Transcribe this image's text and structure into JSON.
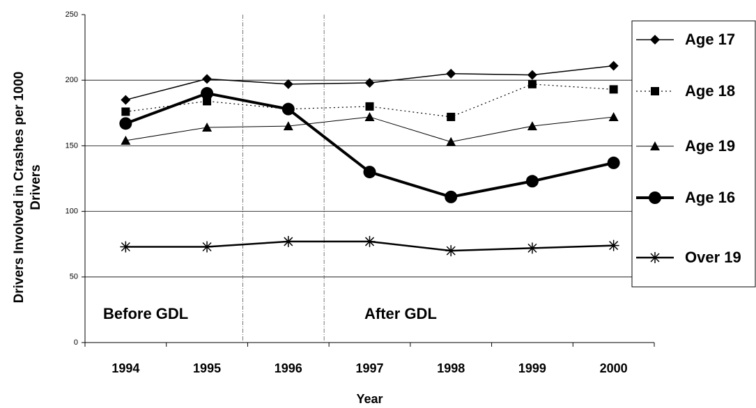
{
  "chart_data": {
    "type": "line",
    "x_label": "Year",
    "y_label": "Drivers Involved in Crashes per 1000 Drivers",
    "categories": [
      "1994",
      "1995",
      "1996",
      "1997",
      "1998",
      "1999",
      "2000"
    ],
    "series": [
      {
        "name": "Age 17",
        "color": "#000000",
        "marker": "diamond",
        "line_width": 1.5,
        "dash": "solid",
        "values": [
          185,
          201,
          197,
          198,
          205,
          204,
          211
        ]
      },
      {
        "name": "Age 18",
        "color": "#000000",
        "marker": "square",
        "line_width": 1.2,
        "dash": "dotted",
        "values": [
          176,
          184,
          178,
          180,
          172,
          197,
          193
        ]
      },
      {
        "name": "Age 19",
        "color": "#000000",
        "marker": "triangle",
        "line_width": 1,
        "dash": "solid",
        "values": [
          154,
          164,
          165,
          172,
          153,
          165,
          172
        ]
      },
      {
        "name": "Age 16",
        "color": "#000000",
        "marker": "circle",
        "line_width": 4,
        "dash": "solid",
        "values": [
          167,
          190,
          178,
          130,
          111,
          123,
          137
        ]
      },
      {
        "name": "Over 19",
        "color": "#000000",
        "marker": "asterisk",
        "line_width": 2.5,
        "dash": "solid",
        "values": [
          73,
          73,
          77,
          77,
          70,
          72,
          74
        ]
      }
    ],
    "annotations": [
      "Before GDL",
      "After GDL"
    ],
    "ylim": [
      0,
      250
    ],
    "yticks": [
      0,
      50,
      100,
      150,
      200,
      250
    ],
    "grid": true,
    "legend": "right"
  }
}
